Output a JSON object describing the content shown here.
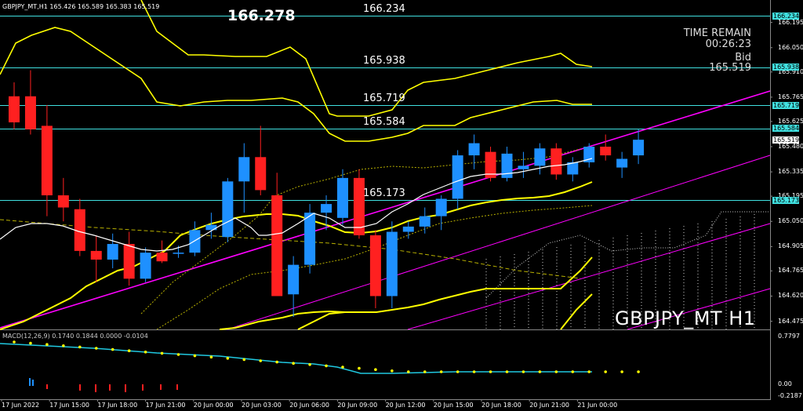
{
  "symbol_info": "GBPJPY_MT,H1  165.426 165.589 165.383 165.519",
  "current_price_big": "166.278",
  "price_labels": [
    {
      "text": "166.234",
      "price": 166.234
    },
    {
      "text": "165.938",
      "price": 165.938
    },
    {
      "text": "165.719",
      "price": 165.719
    },
    {
      "text": "165.584",
      "price": 165.584
    },
    {
      "text": "165.173",
      "price": 165.173
    }
  ],
  "time_remain_label": "TIME REMAIN",
  "time_remain_value": "00:26:23",
  "bid_label": "Bid",
  "bid_value": "165.519",
  "big_symbol": "GBPJPY_MT H1",
  "macd_label": "MACD(12,26,9) 0.1740 0.1844 0.0000 -0.0104",
  "price_axis": [
    "166.195",
    "166.050",
    "165.910",
    "165.765",
    "165.625",
    "165.480",
    "165.335",
    "165.195",
    "165.050",
    "164.905",
    "164.765",
    "164.620",
    "164.475"
  ],
  "price_axis_boxes": [
    {
      "text": "166.234",
      "price": 166.234,
      "bg": "#40e0e0",
      "fg": "#000"
    },
    {
      "text": "165.938",
      "price": 165.938,
      "bg": "#40e0e0",
      "fg": "#000"
    },
    {
      "text": "165.719",
      "price": 165.719,
      "bg": "#40e0e0",
      "fg": "#000"
    },
    {
      "text": "165.584",
      "price": 165.584,
      "bg": "#40e0e0",
      "fg": "#000"
    },
    {
      "text": "165.519",
      "price": 165.519,
      "bg": "#ffffff",
      "fg": "#000"
    },
    {
      "text": "165.173",
      "price": 165.173,
      "bg": "#40e0e0",
      "fg": "#000"
    }
  ],
  "macd_axis": [
    "0.7797",
    "0.00",
    "-0.2187"
  ],
  "time_axis": [
    "17 Jun 2022",
    "17 Jun 15:00",
    "17 Jun 18:00",
    "17 Jun 21:00",
    "20 Jun 00:00",
    "20 Jun 03:00",
    "20 Jun 06:00",
    "20 Jun 09:00",
    "20 Jun 12:00",
    "20 Jun 15:00",
    "20 Jun 18:00",
    "20 Jun 21:00",
    "21 Jun 00:00"
  ],
  "colors": {
    "bull": "#1e90ff",
    "bear": "#ff2020",
    "level": "#40e0e0",
    "band": "#ffff00",
    "channel": "#ff00ff",
    "macd_line": "#20c8e0",
    "macd_signal": "#ffff00"
  },
  "candles": [
    {
      "o": 165.77,
      "h": 165.85,
      "l": 165.58,
      "c": 165.62
    },
    {
      "o": 165.77,
      "h": 165.92,
      "l": 165.55,
      "c": 165.58
    },
    {
      "o": 165.6,
      "h": 165.72,
      "l": 165.08,
      "c": 165.2
    },
    {
      "o": 165.2,
      "h": 165.3,
      "l": 165.05,
      "c": 165.13
    },
    {
      "o": 165.12,
      "h": 165.18,
      "l": 164.85,
      "c": 164.88
    },
    {
      "o": 164.88,
      "h": 164.97,
      "l": 164.7,
      "c": 164.83
    },
    {
      "o": 164.83,
      "h": 164.98,
      "l": 164.78,
      "c": 164.92
    },
    {
      "o": 164.92,
      "h": 164.99,
      "l": 164.68,
      "c": 164.72
    },
    {
      "o": 164.72,
      "h": 164.9,
      "l": 164.7,
      "c": 164.87
    },
    {
      "o": 164.87,
      "h": 164.94,
      "l": 164.81,
      "c": 164.82
    },
    {
      "o": 164.87,
      "h": 164.91,
      "l": 164.84,
      "c": 164.87
    },
    {
      "o": 164.87,
      "h": 165.05,
      "l": 164.85,
      "c": 165.0
    },
    {
      "o": 165.0,
      "h": 165.1,
      "l": 164.95,
      "c": 165.03
    },
    {
      "o": 164.96,
      "h": 165.3,
      "l": 164.93,
      "c": 165.28
    },
    {
      "o": 165.28,
      "h": 165.5,
      "l": 165.1,
      "c": 165.42
    },
    {
      "o": 165.42,
      "h": 165.6,
      "l": 165.2,
      "c": 165.23
    },
    {
      "o": 165.2,
      "h": 165.33,
      "l": 164.62,
      "c": 164.62
    },
    {
      "o": 164.63,
      "h": 164.85,
      "l": 164.5,
      "c": 164.8
    },
    {
      "o": 164.8,
      "h": 165.15,
      "l": 164.75,
      "c": 165.1
    },
    {
      "o": 165.1,
      "h": 165.2,
      "l": 165.0,
      "c": 165.15
    },
    {
      "o": 165.07,
      "h": 165.35,
      "l": 165.03,
      "c": 165.3
    },
    {
      "o": 165.3,
      "h": 165.35,
      "l": 164.95,
      "c": 164.97
    },
    {
      "o": 164.97,
      "h": 165.0,
      "l": 164.55,
      "c": 164.62
    },
    {
      "o": 164.62,
      "h": 165.05,
      "l": 164.55,
      "c": 164.99
    },
    {
      "o": 164.99,
      "h": 165.05,
      "l": 164.95,
      "c": 165.02
    },
    {
      "o": 165.02,
      "h": 165.13,
      "l": 164.98,
      "c": 165.08
    },
    {
      "o": 165.08,
      "h": 165.2,
      "l": 165.0,
      "c": 165.18
    },
    {
      "o": 165.18,
      "h": 165.46,
      "l": 165.12,
      "c": 165.43
    },
    {
      "o": 165.43,
      "h": 165.55,
      "l": 165.35,
      "c": 165.5
    },
    {
      "o": 165.45,
      "h": 165.48,
      "l": 165.28,
      "c": 165.3
    },
    {
      "o": 165.3,
      "h": 165.48,
      "l": 165.28,
      "c": 165.44
    },
    {
      "o": 165.35,
      "h": 165.45,
      "l": 165.3,
      "c": 165.37
    },
    {
      "o": 165.37,
      "h": 165.5,
      "l": 165.32,
      "c": 165.47
    },
    {
      "o": 165.47,
      "h": 165.5,
      "l": 165.29,
      "c": 165.32
    },
    {
      "o": 165.32,
      "h": 165.42,
      "l": 165.28,
      "c": 165.39
    },
    {
      "o": 165.39,
      "h": 165.5,
      "l": 165.36,
      "c": 165.48
    },
    {
      "o": 165.48,
      "h": 165.55,
      "l": 165.4,
      "c": 165.43
    },
    {
      "o": 165.36,
      "h": 165.45,
      "l": 165.3,
      "c": 165.41
    },
    {
      "o": 165.43,
      "h": 165.58,
      "l": 165.38,
      "c": 165.52
    }
  ],
  "upper_band": [
    166.15,
    166.35,
    166.45,
    166.4,
    166.3,
    166.18,
    166.05,
    165.9,
    165.82,
    165.78,
    165.72,
    165.72,
    165.72,
    165.72,
    165.72,
    165.72,
    165.7,
    165.7,
    165.62,
    165.5,
    165.45,
    165.42,
    165.42,
    165.5,
    165.62,
    165.7,
    165.8,
    165.88,
    165.92,
    165.95,
    165.98,
    166.0,
    166.02,
    166.02,
    166.04,
    166.05,
    166.07,
    166.03,
    165.97
  ],
  "mid_band": [
    165.4,
    165.72,
    165.77,
    165.76,
    165.74,
    165.7,
    165.68,
    165.65,
    165.64,
    165.66,
    165.67,
    165.7,
    165.73,
    165.75,
    165.75,
    165.75,
    165.72,
    165.72,
    165.7,
    165.5,
    165.4,
    165.35,
    165.35,
    165.38,
    165.43,
    165.48,
    165.55,
    165.58,
    165.6,
    165.63,
    165.65,
    165.68,
    165.7,
    165.71,
    165.73,
    165.74,
    165.75,
    165.72,
    165.72
  ],
  "lower_band": [
    164.3,
    164.35,
    164.4,
    164.47,
    164.55,
    164.63,
    164.72,
    164.78,
    164.82,
    164.85,
    164.88,
    164.92,
    164.96,
    165.0,
    165.03,
    165.05,
    165.05,
    165.05,
    165.05,
    165.03,
    165.0,
    164.97,
    164.95,
    164.95,
    164.98,
    165.0,
    165.05,
    165.1,
    165.12,
    165.14,
    165.16,
    165.17,
    165.18,
    165.18,
    165.19,
    165.2,
    165.22,
    165.25,
    165.29
  ]
}
